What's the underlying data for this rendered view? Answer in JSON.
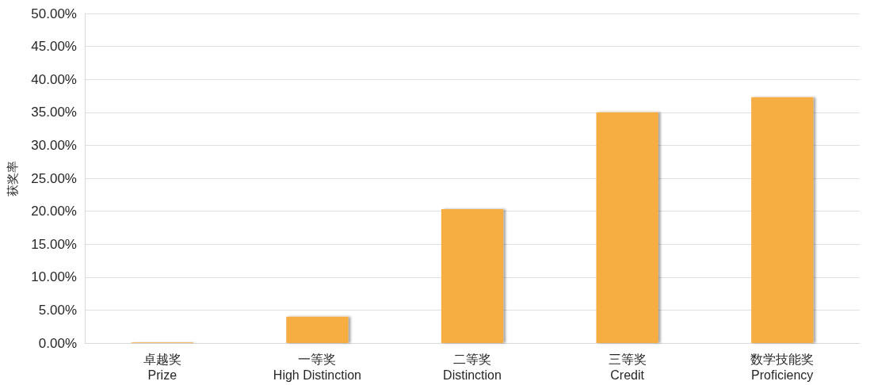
{
  "chart_data": {
    "type": "bar",
    "ylabel": "获奖率",
    "categories": [
      "卓越奖\nPrize",
      "一等奖\nHigh Distinction",
      "二等奖\nDistinction",
      "三等奖\nCredit",
      "数学技能奖\nProficiency"
    ],
    "values": [
      0.1,
      4.0,
      20.3,
      35.0,
      37.3
    ],
    "color": "#f6ad43",
    "ylim": [
      0,
      50
    ],
    "yticks": [
      {
        "value": 0,
        "label": "0.00%"
      },
      {
        "value": 5,
        "label": "5.00%"
      },
      {
        "value": 10,
        "label": "10.00%"
      },
      {
        "value": 15,
        "label": "15.00%"
      },
      {
        "value": 20,
        "label": "20.00%"
      },
      {
        "value": 25,
        "label": "25.00%"
      },
      {
        "value": 30,
        "label": "30.00%"
      },
      {
        "value": 35,
        "label": "35.00%"
      },
      {
        "value": 40,
        "label": "40.00%"
      },
      {
        "value": 45,
        "label": "45.00%"
      },
      {
        "value": 50,
        "label": "50.00%"
      }
    ],
    "grid": "y"
  }
}
